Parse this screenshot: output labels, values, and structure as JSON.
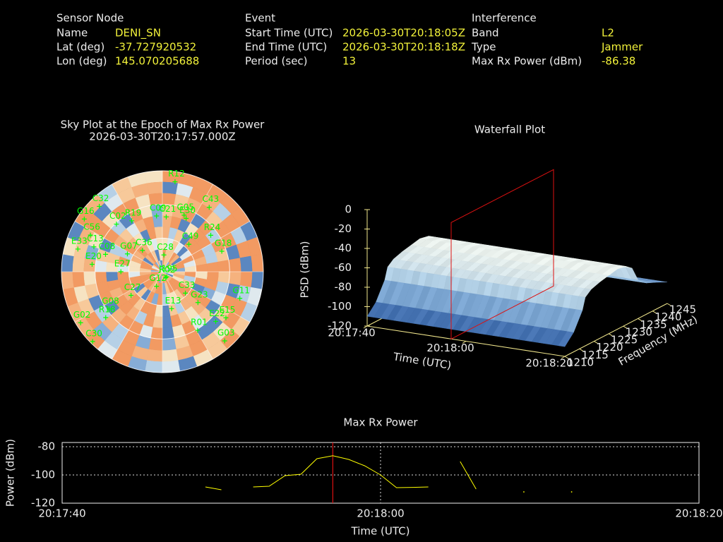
{
  "header": {
    "sections": [
      {
        "title": "Sensor Node",
        "rows": [
          {
            "label": "Name",
            "value": "DENI_SN"
          },
          {
            "label": "Lat (deg)",
            "value": -37.727920532
          },
          {
            "label": "Lon (deg)",
            "value": 145.070205688
          }
        ]
      },
      {
        "title": "Event",
        "rows": [
          {
            "label": "Start Time (UTC)",
            "value": "2026-03-30T20:18:05Z"
          },
          {
            "label": "End Time (UTC)",
            "value": "2026-03-30T20:18:18Z"
          },
          {
            "label": "Period (sec)",
            "value": 13
          }
        ]
      },
      {
        "title": "Interference",
        "rows": [
          {
            "label": "Band",
            "value": "L2"
          },
          {
            "label": "Type",
            "value": "Jammer"
          },
          {
            "label": "Max Rx Power (dBm)",
            "value": -86.38
          }
        ]
      }
    ]
  },
  "chart_data": [
    {
      "type": "skyplot",
      "title": "Sky Plot at the Epoch of Max Rx Power",
      "subtitle": "2026-03-30T20:17:57.000Z",
      "rlim": [
        0,
        90
      ],
      "color": "#00ff00",
      "satellites": [
        {
          "label": "R12",
          "azimuth": 8,
          "elevation": 9
        },
        {
          "label": "C43",
          "azimuth": 36,
          "elevation": 19
        },
        {
          "label": "G16",
          "azimuth": 304,
          "elevation": 6
        },
        {
          "label": "C32",
          "azimuth": 316,
          "elevation": 9
        },
        {
          "label": "C02",
          "azimuth": 316,
          "elevation": 31
        },
        {
          "label": "R19",
          "azimuth": 329,
          "elevation": 37
        },
        {
          "label": "C09",
          "azimuth": 354,
          "elevation": 40
        },
        {
          "label": "C21",
          "azimuth": 4,
          "elevation": 41
        },
        {
          "label": "G05",
          "azimuth": 21,
          "elevation": 36
        },
        {
          "label": "E30",
          "azimuth": 24,
          "elevation": 38
        },
        {
          "label": "C56",
          "azimuth": 297,
          "elevation": 18
        },
        {
          "label": "E33",
          "azimuth": 285,
          "elevation": 12
        },
        {
          "label": "C13",
          "azimuth": 290,
          "elevation": 25
        },
        {
          "label": "C08",
          "azimuth": 287,
          "elevation": 37
        },
        {
          "label": "E20",
          "azimuth": 276,
          "elevation": 27
        },
        {
          "label": "C36",
          "azimuth": 317,
          "elevation": 64
        },
        {
          "label": "G07",
          "azimuth": 297,
          "elevation": 55
        },
        {
          "label": "C28",
          "azimuth": 5,
          "elevation": 75
        },
        {
          "label": "C49",
          "azimuth": 44,
          "elevation": 56
        },
        {
          "label": "R24",
          "azimuth": 53,
          "elevation": 36
        },
        {
          "label": "G18",
          "azimuth": 71,
          "elevation": 34
        },
        {
          "label": "J195",
          "azimuth": 139,
          "elevation": 84
        },
        {
          "label": "E27",
          "azimuth": 270,
          "elevation": 53
        },
        {
          "label": "R02",
          "azimuth": 150,
          "elevation": 84
        },
        {
          "label": "G12",
          "azimuth": 202,
          "elevation": 76
        },
        {
          "label": "C27",
          "azimuth": 233,
          "elevation": 55
        },
        {
          "label": "C33",
          "azimuth": 133,
          "elevation": 62
        },
        {
          "label": "G23",
          "azimuth": 131,
          "elevation": 48
        },
        {
          "label": "E13",
          "azimuth": 166,
          "elevation": 56
        },
        {
          "label": "G11",
          "azimuth": 109,
          "elevation": 17
        },
        {
          "label": "G08",
          "azimuth": 235,
          "elevation": 32
        },
        {
          "label": "R18",
          "azimuth": 231,
          "elevation": 25
        },
        {
          "label": "E15",
          "azimuth": 126,
          "elevation": 20
        },
        {
          "label": "E22",
          "azimuth": 133,
          "elevation": 25
        },
        {
          "label": "G02",
          "azimuth": 238,
          "elevation": 4
        },
        {
          "label": "R01",
          "azimuth": 149,
          "elevation": 29
        },
        {
          "label": "C30",
          "azimuth": 225,
          "elevation": 2
        },
        {
          "label": "G03",
          "azimuth": 138,
          "elevation": 7
        }
      ]
    },
    {
      "type": "surface",
      "title": "Waterfall Plot",
      "xlabel": "Time (UTC)",
      "ylabel": "Frequency (MHz)",
      "zlabel": "PSD (dBm)",
      "xlim": [
        "20:17:40",
        "20:18:20"
      ],
      "xticks": [
        "20:17:40",
        "20:18:00",
        "20:18:20"
      ],
      "ylim": [
        1210,
        1245
      ],
      "yticks": [
        1210,
        1215,
        1220,
        1225,
        1230,
        1235,
        1240,
        1245
      ],
      "zlim": [
        -120,
        0
      ],
      "zticks": [
        0,
        -20,
        -40,
        -60,
        -80,
        -100,
        -120
      ],
      "frequencies": [
        1210,
        1213,
        1216,
        1217,
        1219,
        1222,
        1225,
        1228,
        1231,
        1233,
        1235,
        1238,
        1241,
        1245
      ],
      "psd": [
        -110,
        -100,
        -82,
        -70,
        -65,
        -62,
        -60,
        -58,
        -60,
        -65,
        -80,
        -88,
        -92,
        -98
      ],
      "marker_time": "20:17:57",
      "marker_color": "#dd1111",
      "axis_color": "#f0e68c"
    },
    {
      "type": "line",
      "title": "Max Rx Power",
      "xlabel": "Time (UTC)",
      "ylabel": "Power (dBm)",
      "xlim": [
        "20:17:40",
        "20:18:20"
      ],
      "xticks": [
        "20:17:40",
        "20:18:00",
        "20:18:20"
      ],
      "ylim": [
        -120,
        -77
      ],
      "yticks": [
        -80,
        -100,
        -120
      ],
      "grid": true,
      "color": "#ffff00",
      "marker_time": "20:17:57",
      "marker_color": "#dd1111",
      "x": [
        "20:17:49",
        "20:17:50",
        "20:17:51",
        "20:17:52",
        "20:17:53",
        "20:17:54",
        "20:17:55",
        "20:17:56",
        "20:17:57",
        "20:17:58",
        "20:17:59",
        "20:18:00",
        "20:18:01",
        "20:18:02",
        "20:18:03",
        "20:18:04",
        "20:18:05",
        "20:18:06",
        "20:18:07",
        "20:18:08",
        "20:18:09",
        "20:18:10",
        "20:18:11",
        "20:18:12"
      ],
      "values": [
        -108.5,
        -110.5,
        null,
        -108.5,
        -108,
        -100.5,
        -99.5,
        -88.5,
        -86.38,
        -89,
        -93.5,
        -100,
        -109,
        -108.8,
        -108.5,
        null,
        -90.5,
        -110,
        null,
        null,
        -112,
        null,
        null,
        -112
      ]
    }
  ]
}
